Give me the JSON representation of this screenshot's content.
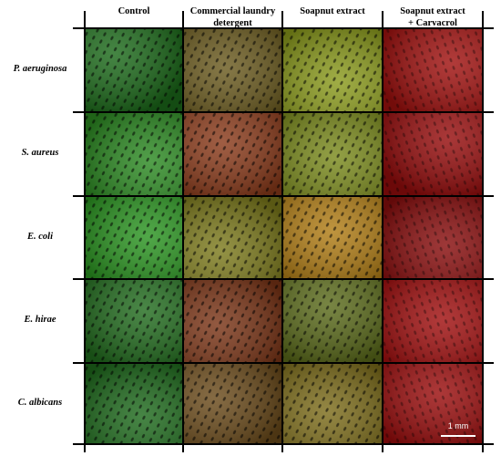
{
  "columns": [
    "Control",
    "Commercial laundry detergent",
    "Soapnut extract",
    "Soapnut extract + Carvacrol"
  ],
  "column_headers_display": [
    "Control",
    "Commercial laundry\ndetergent",
    "Soapnut extract",
    "Soapnut extract\n+ Carvacrol"
  ],
  "rows": [
    "P. aeruginosa",
    "S. aureus",
    "E. coli",
    "E. hirae",
    "C. albicans"
  ],
  "cell_tints": [
    [
      "#1c6a1a",
      "#6a5a1e",
      "#8a9a1c",
      "#a0100e"
    ],
    [
      "#2c8a22",
      "#8a3a1a",
      "#7a8a1c",
      "#960c0c"
    ],
    [
      "#2a9420",
      "#7c7a1c",
      "#b07c14",
      "#880c0c"
    ],
    [
      "#226c1e",
      "#7a3416",
      "#5a6a1a",
      "#a00e0e"
    ],
    [
      "#1e6a1c",
      "#6a4a1a",
      "#7c6c1a",
      "#9a0c0c"
    ]
  ],
  "scale_bar": {
    "label": "1 mm"
  }
}
